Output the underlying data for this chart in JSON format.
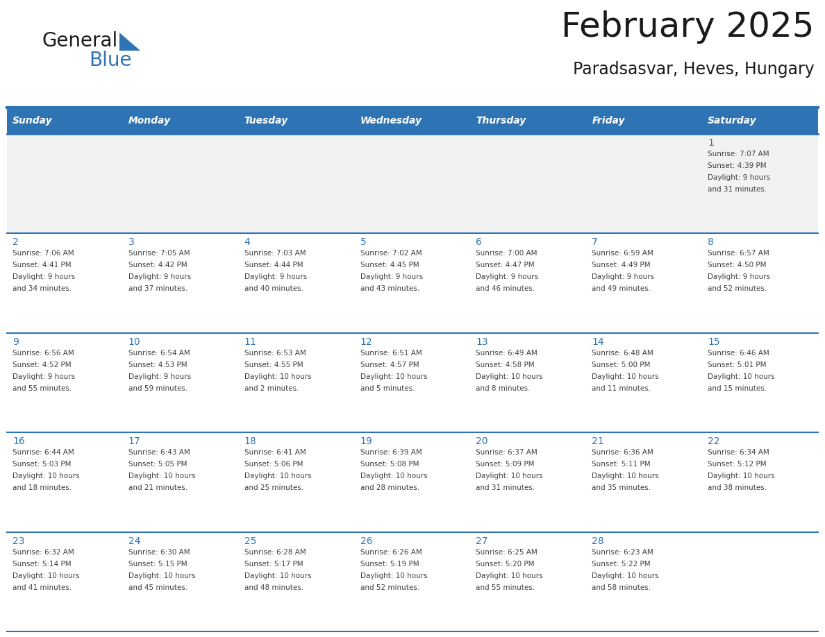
{
  "title": "February 2025",
  "subtitle": "Paradsasvar, Heves, Hungary",
  "days_of_week": [
    "Sunday",
    "Monday",
    "Tuesday",
    "Wednesday",
    "Thursday",
    "Friday",
    "Saturday"
  ],
  "header_bg": "#2E74B5",
  "header_text": "#FFFFFF",
  "row_bg_even": "#F2F2F2",
  "row_bg_odd": "#FFFFFF",
  "cell_border": "#2E74B5",
  "day_number_color": "#2E74B5",
  "info_text_color": "#404040",
  "logo_general_color": "#1a1a1a",
  "logo_blue_color": "#2E74B5",
  "calendar_data": [
    {
      "day": 1,
      "col": 6,
      "row": 0,
      "sunrise": "7:07 AM",
      "sunset": "4:39 PM",
      "daylight": "9 hours and 31 minutes."
    },
    {
      "day": 2,
      "col": 0,
      "row": 1,
      "sunrise": "7:06 AM",
      "sunset": "4:41 PM",
      "daylight": "9 hours and 34 minutes."
    },
    {
      "day": 3,
      "col": 1,
      "row": 1,
      "sunrise": "7:05 AM",
      "sunset": "4:42 PM",
      "daylight": "9 hours and 37 minutes."
    },
    {
      "day": 4,
      "col": 2,
      "row": 1,
      "sunrise": "7:03 AM",
      "sunset": "4:44 PM",
      "daylight": "9 hours and 40 minutes."
    },
    {
      "day": 5,
      "col": 3,
      "row": 1,
      "sunrise": "7:02 AM",
      "sunset": "4:45 PM",
      "daylight": "9 hours and 43 minutes."
    },
    {
      "day": 6,
      "col": 4,
      "row": 1,
      "sunrise": "7:00 AM",
      "sunset": "4:47 PM",
      "daylight": "9 hours and 46 minutes."
    },
    {
      "day": 7,
      "col": 5,
      "row": 1,
      "sunrise": "6:59 AM",
      "sunset": "4:49 PM",
      "daylight": "9 hours and 49 minutes."
    },
    {
      "day": 8,
      "col": 6,
      "row": 1,
      "sunrise": "6:57 AM",
      "sunset": "4:50 PM",
      "daylight": "9 hours and 52 minutes."
    },
    {
      "day": 9,
      "col": 0,
      "row": 2,
      "sunrise": "6:56 AM",
      "sunset": "4:52 PM",
      "daylight": "9 hours and 55 minutes."
    },
    {
      "day": 10,
      "col": 1,
      "row": 2,
      "sunrise": "6:54 AM",
      "sunset": "4:53 PM",
      "daylight": "9 hours and 59 minutes."
    },
    {
      "day": 11,
      "col": 2,
      "row": 2,
      "sunrise": "6:53 AM",
      "sunset": "4:55 PM",
      "daylight": "10 hours and 2 minutes."
    },
    {
      "day": 12,
      "col": 3,
      "row": 2,
      "sunrise": "6:51 AM",
      "sunset": "4:57 PM",
      "daylight": "10 hours and 5 minutes."
    },
    {
      "day": 13,
      "col": 4,
      "row": 2,
      "sunrise": "6:49 AM",
      "sunset": "4:58 PM",
      "daylight": "10 hours and 8 minutes."
    },
    {
      "day": 14,
      "col": 5,
      "row": 2,
      "sunrise": "6:48 AM",
      "sunset": "5:00 PM",
      "daylight": "10 hours and 11 minutes."
    },
    {
      "day": 15,
      "col": 6,
      "row": 2,
      "sunrise": "6:46 AM",
      "sunset": "5:01 PM",
      "daylight": "10 hours and 15 minutes."
    },
    {
      "day": 16,
      "col": 0,
      "row": 3,
      "sunrise": "6:44 AM",
      "sunset": "5:03 PM",
      "daylight": "10 hours and 18 minutes."
    },
    {
      "day": 17,
      "col": 1,
      "row": 3,
      "sunrise": "6:43 AM",
      "sunset": "5:05 PM",
      "daylight": "10 hours and 21 minutes."
    },
    {
      "day": 18,
      "col": 2,
      "row": 3,
      "sunrise": "6:41 AM",
      "sunset": "5:06 PM",
      "daylight": "10 hours and 25 minutes."
    },
    {
      "day": 19,
      "col": 3,
      "row": 3,
      "sunrise": "6:39 AM",
      "sunset": "5:08 PM",
      "daylight": "10 hours and 28 minutes."
    },
    {
      "day": 20,
      "col": 4,
      "row": 3,
      "sunrise": "6:37 AM",
      "sunset": "5:09 PM",
      "daylight": "10 hours and 31 minutes."
    },
    {
      "day": 21,
      "col": 5,
      "row": 3,
      "sunrise": "6:36 AM",
      "sunset": "5:11 PM",
      "daylight": "10 hours and 35 minutes."
    },
    {
      "day": 22,
      "col": 6,
      "row": 3,
      "sunrise": "6:34 AM",
      "sunset": "5:12 PM",
      "daylight": "10 hours and 38 minutes."
    },
    {
      "day": 23,
      "col": 0,
      "row": 4,
      "sunrise": "6:32 AM",
      "sunset": "5:14 PM",
      "daylight": "10 hours and 41 minutes."
    },
    {
      "day": 24,
      "col": 1,
      "row": 4,
      "sunrise": "6:30 AM",
      "sunset": "5:15 PM",
      "daylight": "10 hours and 45 minutes."
    },
    {
      "day": 25,
      "col": 2,
      "row": 4,
      "sunrise": "6:28 AM",
      "sunset": "5:17 PM",
      "daylight": "10 hours and 48 minutes."
    },
    {
      "day": 26,
      "col": 3,
      "row": 4,
      "sunrise": "6:26 AM",
      "sunset": "5:19 PM",
      "daylight": "10 hours and 52 minutes."
    },
    {
      "day": 27,
      "col": 4,
      "row": 4,
      "sunrise": "6:25 AM",
      "sunset": "5:20 PM",
      "daylight": "10 hours and 55 minutes."
    },
    {
      "day": 28,
      "col": 5,
      "row": 4,
      "sunrise": "6:23 AM",
      "sunset": "5:22 PM",
      "daylight": "10 hours and 58 minutes."
    }
  ],
  "num_rows": 5,
  "num_cols": 7
}
